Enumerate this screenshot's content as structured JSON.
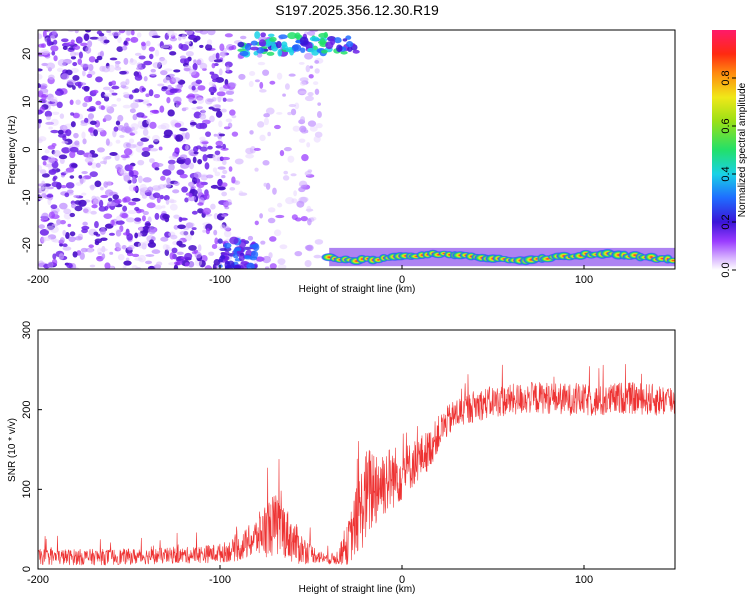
{
  "title": "S197.2025.356.12.30.R19",
  "chart_data": [
    {
      "type": "heatmap",
      "xlabel": "Height of straight line (km)",
      "ylabel": "Frequency (Hz)",
      "xlim": [
        -200,
        150
      ],
      "ylim": [
        -25,
        25
      ],
      "xticks": [
        -200,
        -100,
        0,
        100
      ],
      "yticks": [
        20,
        10,
        0,
        -10,
        -20
      ],
      "colorbar": {
        "label": "Normalized spectral amplitude",
        "range": [
          0,
          1
        ],
        "ticks": [
          "0.0",
          "0.2",
          "0.4",
          "0.6",
          "0.8"
        ],
        "tick_values": [
          0.0,
          0.2,
          0.4,
          0.6,
          0.8
        ]
      },
      "features": [
        {
          "name": "scattered noise blobs",
          "x_range": [
            -200,
            -45
          ],
          "freq_range": [
            -25,
            25
          ],
          "amplitude": 0.1
        },
        {
          "name": "high-frequency blob band",
          "x_range": [
            -90,
            -25
          ],
          "freq_range": [
            20,
            24
          ],
          "amplitude": 0.35
        },
        {
          "name": "low-frequency edge blobs",
          "x_range": [
            -100,
            -80
          ],
          "freq_range": [
            -25,
            -19
          ],
          "amplitude": 0.2
        },
        {
          "name": "strong low-frequency band",
          "x_range": [
            -40,
            150
          ],
          "freq_range": [
            -24,
            -21
          ],
          "amplitude": 0.9
        }
      ]
    },
    {
      "type": "line",
      "xlabel": "Height of straight line (km)",
      "ylabel": "SNR (10 * v/v)",
      "xlim": [
        -200,
        150
      ],
      "ylim": [
        0,
        300
      ],
      "xticks": [
        -200,
        -100,
        0,
        100
      ],
      "yticks": [
        0,
        100,
        200,
        300
      ],
      "series": [
        {
          "name": "SNR",
          "color": "#ee3333",
          "x": [
            -200,
            -180,
            -160,
            -140,
            -120,
            -100,
            -90,
            -80,
            -75,
            -70,
            -65,
            -60,
            -55,
            -50,
            -45,
            -40,
            -35,
            -30,
            -25,
            -20,
            -15,
            -10,
            -5,
            0,
            5,
            10,
            15,
            20,
            25,
            30,
            40,
            50,
            60,
            70,
            80,
            90,
            100,
            110,
            120,
            130,
            140,
            150
          ],
          "y": [
            15,
            15,
            15,
            16,
            17,
            20,
            25,
            40,
            50,
            55,
            50,
            35,
            25,
            20,
            15,
            12,
            15,
            30,
            60,
            90,
            105,
            110,
            115,
            120,
            130,
            140,
            150,
            170,
            185,
            195,
            205,
            210,
            212,
            215,
            215,
            213,
            212,
            210,
            215,
            214,
            212,
            212
          ],
          "noise": [
            10,
            10,
            10,
            10,
            10,
            12,
            15,
            25,
            35,
            40,
            35,
            28,
            20,
            12,
            8,
            6,
            10,
            25,
            45,
            60,
            55,
            45,
            40,
            35,
            30,
            28,
            25,
            22,
            20,
            20,
            20,
            20,
            20,
            20,
            20,
            20,
            20,
            20,
            20,
            20,
            20,
            20
          ]
        }
      ]
    }
  ]
}
